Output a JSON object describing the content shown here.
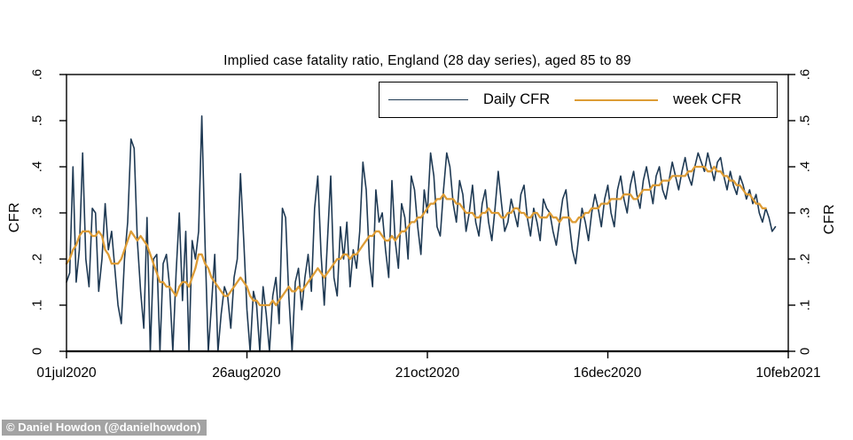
{
  "title": "Implied case fatality ratio, England (28 day series), aged 85 to 89",
  "watermark": "© Daniel Howdon (@danielhowdon)",
  "legend": {
    "daily_label": "Daily CFR",
    "weekly_label": "week CFR"
  },
  "axes": {
    "y_label_left": "CFR",
    "y_label_right": "CFR",
    "y_tick_labels": [
      "0",
      ".1",
      ".2",
      ".3",
      ".4",
      ".5",
      ".6"
    ],
    "x_tick_labels": [
      "01jul2020",
      "26aug2020",
      "21oct2020",
      "16dec2020",
      "10feb2021"
    ]
  },
  "colors": {
    "daily": "#1f3a54",
    "weekly": "#dd9c35",
    "frame": "#000000",
    "watermark_bg": "#a3a3a3"
  },
  "chart_data": {
    "type": "line",
    "title": "Implied case fatality ratio, England (28 day series), aged 85 to 89",
    "xlabel": "",
    "ylabel": "CFR",
    "legend_position": "top-inside",
    "grid": false,
    "x_axis": {
      "unit": "days since 01jul2020",
      "range_days": [
        0,
        224
      ],
      "tick_days": [
        0,
        56,
        112,
        168,
        224
      ],
      "tick_labels": [
        "01jul2020",
        "26aug2020",
        "21oct2020",
        "16dec2020",
        "10feb2021"
      ]
    },
    "y_axis": {
      "label": "CFR",
      "range": [
        0,
        0.6
      ],
      "ticks": [
        0,
        0.1,
        0.2,
        0.3,
        0.4,
        0.5,
        0.6
      ]
    },
    "series": [
      {
        "name": "Daily CFR",
        "color": "#1f3a54",
        "x_start_day": 0,
        "x_step_days": 1,
        "values": [
          0.15,
          0.17,
          0.4,
          0.15,
          0.22,
          0.43,
          0.2,
          0.14,
          0.31,
          0.3,
          0.13,
          0.2,
          0.32,
          0.22,
          0.26,
          0.18,
          0.1,
          0.06,
          0.2,
          0.28,
          0.46,
          0.44,
          0.24,
          0.13,
          0.05,
          0.29,
          0.0,
          0.2,
          0.21,
          0.0,
          0.19,
          0.21,
          0.14,
          0.0,
          0.17,
          0.3,
          0.11,
          0.26,
          0.0,
          0.24,
          0.2,
          0.26,
          0.51,
          0.23,
          0.0,
          0.1,
          0.21,
          0.0,
          0.08,
          0.14,
          0.12,
          0.05,
          0.16,
          0.2,
          0.385,
          0.24,
          0.09,
          0.0,
          0.13,
          0.1,
          0.0,
          0.14,
          0.08,
          0.0,
          0.12,
          0.16,
          0.06,
          0.31,
          0.29,
          0.12,
          0.0,
          0.15,
          0.18,
          0.09,
          0.16,
          0.21,
          0.13,
          0.31,
          0.38,
          0.21,
          0.1,
          0.24,
          0.38,
          0.16,
          0.12,
          0.27,
          0.2,
          0.28,
          0.14,
          0.22,
          0.18,
          0.26,
          0.41,
          0.35,
          0.2,
          0.14,
          0.35,
          0.28,
          0.3,
          0.22,
          0.16,
          0.37,
          0.24,
          0.18,
          0.32,
          0.29,
          0.2,
          0.38,
          0.35,
          0.27,
          0.21,
          0.35,
          0.3,
          0.43,
          0.38,
          0.27,
          0.25,
          0.35,
          0.43,
          0.4,
          0.32,
          0.28,
          0.37,
          0.34,
          0.26,
          0.3,
          0.36,
          0.28,
          0.25,
          0.32,
          0.35,
          0.28,
          0.24,
          0.31,
          0.39,
          0.32,
          0.26,
          0.28,
          0.33,
          0.3,
          0.27,
          0.34,
          0.36,
          0.29,
          0.25,
          0.31,
          0.28,
          0.24,
          0.33,
          0.31,
          0.3,
          0.26,
          0.23,
          0.28,
          0.33,
          0.35,
          0.28,
          0.22,
          0.19,
          0.25,
          0.31,
          0.28,
          0.24,
          0.3,
          0.34,
          0.31,
          0.27,
          0.33,
          0.36,
          0.3,
          0.27,
          0.35,
          0.38,
          0.33,
          0.3,
          0.36,
          0.39,
          0.34,
          0.31,
          0.37,
          0.4,
          0.36,
          0.32,
          0.38,
          0.4,
          0.35,
          0.33,
          0.37,
          0.41,
          0.38,
          0.35,
          0.39,
          0.42,
          0.38,
          0.36,
          0.4,
          0.43,
          0.41,
          0.39,
          0.43,
          0.4,
          0.37,
          0.41,
          0.42,
          0.38,
          0.35,
          0.39,
          0.36,
          0.34,
          0.38,
          0.36,
          0.33,
          0.35,
          0.32,
          0.34,
          0.3,
          0.28,
          0.31,
          0.29,
          0.26,
          0.27
        ]
      },
      {
        "name": "week CFR",
        "color": "#dd9c35",
        "x_start_day": 0,
        "x_step_days": 1,
        "values": [
          0.19,
          0.2,
          0.22,
          0.23,
          0.25,
          0.26,
          0.26,
          0.26,
          0.25,
          0.25,
          0.26,
          0.25,
          0.22,
          0.21,
          0.19,
          0.19,
          0.19,
          0.2,
          0.22,
          0.24,
          0.26,
          0.25,
          0.24,
          0.25,
          0.24,
          0.23,
          0.21,
          0.19,
          0.17,
          0.15,
          0.15,
          0.14,
          0.14,
          0.13,
          0.12,
          0.14,
          0.15,
          0.15,
          0.14,
          0.16,
          0.18,
          0.21,
          0.21,
          0.19,
          0.18,
          0.16,
          0.15,
          0.14,
          0.13,
          0.12,
          0.12,
          0.13,
          0.14,
          0.15,
          0.16,
          0.15,
          0.14,
          0.12,
          0.11,
          0.11,
          0.1,
          0.1,
          0.1,
          0.1,
          0.11,
          0.1,
          0.11,
          0.12,
          0.13,
          0.14,
          0.13,
          0.13,
          0.14,
          0.13,
          0.14,
          0.15,
          0.16,
          0.17,
          0.18,
          0.17,
          0.16,
          0.17,
          0.18,
          0.19,
          0.2,
          0.2,
          0.21,
          0.21,
          0.2,
          0.21,
          0.21,
          0.22,
          0.23,
          0.24,
          0.25,
          0.25,
          0.26,
          0.26,
          0.25,
          0.24,
          0.24,
          0.25,
          0.24,
          0.25,
          0.26,
          0.26,
          0.27,
          0.28,
          0.28,
          0.29,
          0.29,
          0.3,
          0.31,
          0.32,
          0.32,
          0.33,
          0.33,
          0.34,
          0.33,
          0.33,
          0.33,
          0.32,
          0.32,
          0.31,
          0.3,
          0.3,
          0.3,
          0.29,
          0.29,
          0.3,
          0.3,
          0.31,
          0.3,
          0.3,
          0.3,
          0.29,
          0.29,
          0.3,
          0.3,
          0.31,
          0.31,
          0.3,
          0.3,
          0.29,
          0.29,
          0.3,
          0.3,
          0.29,
          0.29,
          0.29,
          0.3,
          0.29,
          0.29,
          0.28,
          0.29,
          0.29,
          0.29,
          0.28,
          0.28,
          0.29,
          0.29,
          0.3,
          0.3,
          0.31,
          0.31,
          0.31,
          0.32,
          0.32,
          0.32,
          0.33,
          0.33,
          0.33,
          0.33,
          0.34,
          0.34,
          0.34,
          0.33,
          0.33,
          0.34,
          0.35,
          0.35,
          0.35,
          0.36,
          0.36,
          0.36,
          0.37,
          0.37,
          0.37,
          0.38,
          0.38,
          0.38,
          0.38,
          0.38,
          0.39,
          0.39,
          0.4,
          0.4,
          0.4,
          0.4,
          0.39,
          0.39,
          0.4,
          0.39,
          0.39,
          0.38,
          0.38,
          0.37,
          0.37,
          0.36,
          0.36,
          0.35,
          0.34,
          0.34,
          0.33,
          0.32,
          0.32,
          0.31,
          0.31
        ]
      }
    ]
  }
}
